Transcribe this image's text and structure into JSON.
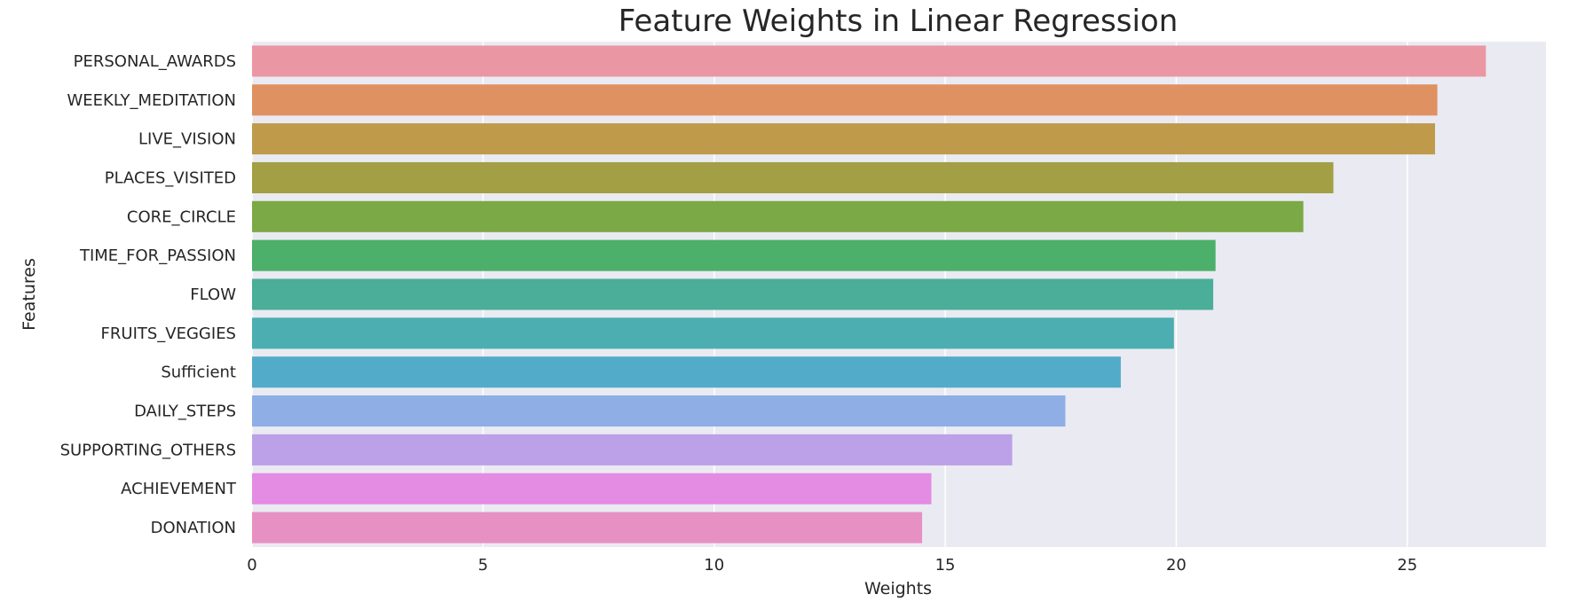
{
  "chart_data": {
    "type": "bar",
    "orientation": "horizontal",
    "title": "Feature Weights in Linear Regression",
    "xlabel": "Weights",
    "ylabel": "Features",
    "xlim": [
      0,
      28
    ],
    "xticks": [
      0,
      5,
      10,
      15,
      20,
      25
    ],
    "grid": true,
    "categories": [
      "PERSONAL_AWARDS",
      "WEEKLY_MEDITATION",
      "LIVE_VISION",
      "PLACES_VISITED",
      "CORE_CIRCLE",
      "TIME_FOR_PASSION",
      "FLOW",
      "FRUITS_VEGGIES",
      "Sufficient",
      "DAILY_STEPS",
      "SUPPORTING_OTHERS",
      "ACHIEVEMENT",
      "DONATION"
    ],
    "values": [
      26.7,
      25.65,
      25.6,
      23.4,
      22.75,
      20.85,
      20.8,
      19.95,
      18.8,
      17.6,
      16.45,
      14.7,
      14.5
    ],
    "colors": [
      "#ea96a3",
      "#e09161",
      "#bf9a4b",
      "#a29f44",
      "#7ba946",
      "#4caf6a",
      "#4aae98",
      "#4caeb1",
      "#52abc9",
      "#8eaee5",
      "#bca0e8",
      "#e48be4",
      "#e790c3"
    ],
    "background_color": "#eaeaf2",
    "grid_color": "#ffffff"
  }
}
